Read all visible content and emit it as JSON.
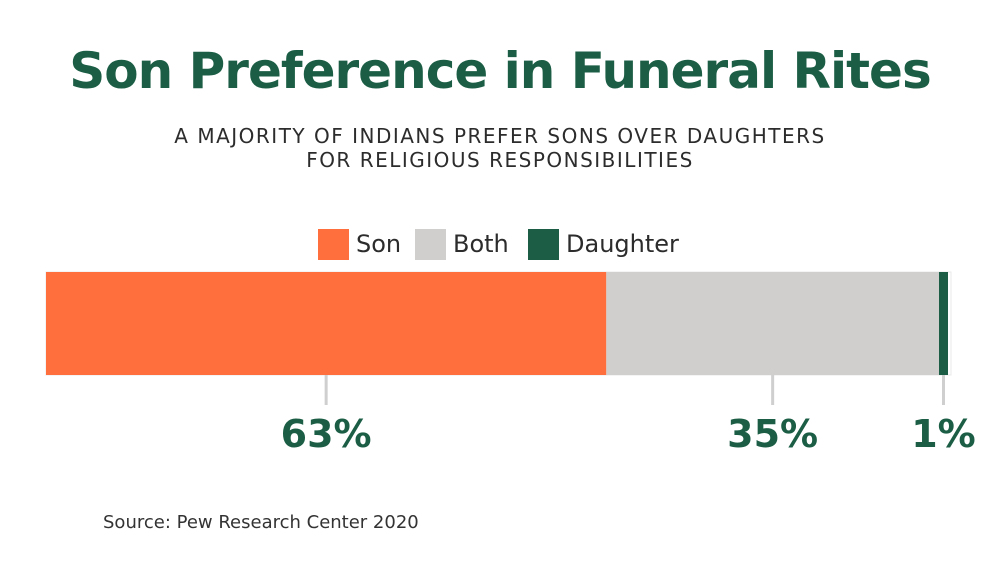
{
  "header": {
    "title": "Son Preference in Funeral Rites",
    "subtitle": "A MAJORITY OF INDIANS PREFER SONS OVER DAUGHTERS FOR RELIGIOUS RESPONSIBILITIES"
  },
  "footer": {
    "source": "Source: Pew Research Center 2020"
  },
  "colors": {
    "son": "#ff6f3d",
    "both": "#d0cfcd",
    "daughter": "#1b5e45",
    "connector": "#cfcfcf"
  },
  "chart_data": {
    "type": "bar",
    "orientation": "horizontal-stacked",
    "title": "Son Preference in Funeral Rites",
    "subtitle": "A MAJORITY OF INDIANS PREFER SONS OVER DAUGHTERS FOR RELIGIOUS RESPONSIBILITIES",
    "legend_position": "top-center",
    "series": [
      {
        "name": "Son",
        "value": 63,
        "label": "63%",
        "color": "#ff6f3d"
      },
      {
        "name": "Both",
        "value": 35,
        "label": "35%",
        "color": "#d0cfcd"
      },
      {
        "name": "Daughter",
        "value": 1,
        "label": "1%",
        "color": "#1b5e45"
      }
    ],
    "xlim": [
      0,
      100
    ],
    "source": "Source: Pew Research Center 2020"
  }
}
